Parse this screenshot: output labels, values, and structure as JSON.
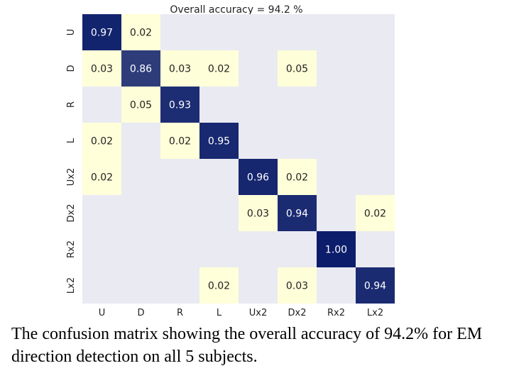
{
  "chart_data": {
    "type": "heatmap",
    "title": "Overall accuracy = 94.2 %",
    "xlabel": "",
    "ylabel": "",
    "x_categories": [
      "U",
      "D",
      "R",
      "L",
      "Ux2",
      "Dx2",
      "Rx2",
      "Lx2"
    ],
    "y_categories": [
      "U",
      "D",
      "R",
      "L",
      "Ux2",
      "Dx2",
      "Rx2",
      "Lx2"
    ],
    "cells": [
      {
        "row": "U",
        "col": "U",
        "value": "0.97"
      },
      {
        "row": "U",
        "col": "D",
        "value": "0.02"
      },
      {
        "row": "D",
        "col": "U",
        "value": "0.03"
      },
      {
        "row": "D",
        "col": "D",
        "value": "0.86"
      },
      {
        "row": "D",
        "col": "R",
        "value": "0.03"
      },
      {
        "row": "D",
        "col": "L",
        "value": "0.02"
      },
      {
        "row": "D",
        "col": "Dx2",
        "value": "0.05"
      },
      {
        "row": "R",
        "col": "D",
        "value": "0.05"
      },
      {
        "row": "R",
        "col": "R",
        "value": "0.93"
      },
      {
        "row": "L",
        "col": "U",
        "value": "0.02"
      },
      {
        "row": "L",
        "col": "R",
        "value": "0.02"
      },
      {
        "row": "L",
        "col": "L",
        "value": "0.95"
      },
      {
        "row": "Ux2",
        "col": "U",
        "value": "0.02"
      },
      {
        "row": "Ux2",
        "col": "Ux2",
        "value": "0.96"
      },
      {
        "row": "Ux2",
        "col": "Dx2",
        "value": "0.02"
      },
      {
        "row": "Dx2",
        "col": "Ux2",
        "value": "0.03"
      },
      {
        "row": "Dx2",
        "col": "Dx2",
        "value": "0.94"
      },
      {
        "row": "Dx2",
        "col": "Lx2",
        "value": "0.02"
      },
      {
        "row": "Rx2",
        "col": "Rx2",
        "value": "1.00"
      },
      {
        "row": "Lx2",
        "col": "L",
        "value": "0.02"
      },
      {
        "row": "Lx2",
        "col": "Dx2",
        "value": "0.03"
      },
      {
        "row": "Lx2",
        "col": "Lx2",
        "value": "0.94"
      }
    ],
    "empty_cell_color": "#eaeaf2",
    "low_color": "#ffffd9",
    "high_color": "#0c1d6b",
    "grid": false,
    "legend": "none"
  },
  "caption": "The confusion matrix showing the overall accuracy of 94.2% for EM direction detection on all 5 subjects."
}
